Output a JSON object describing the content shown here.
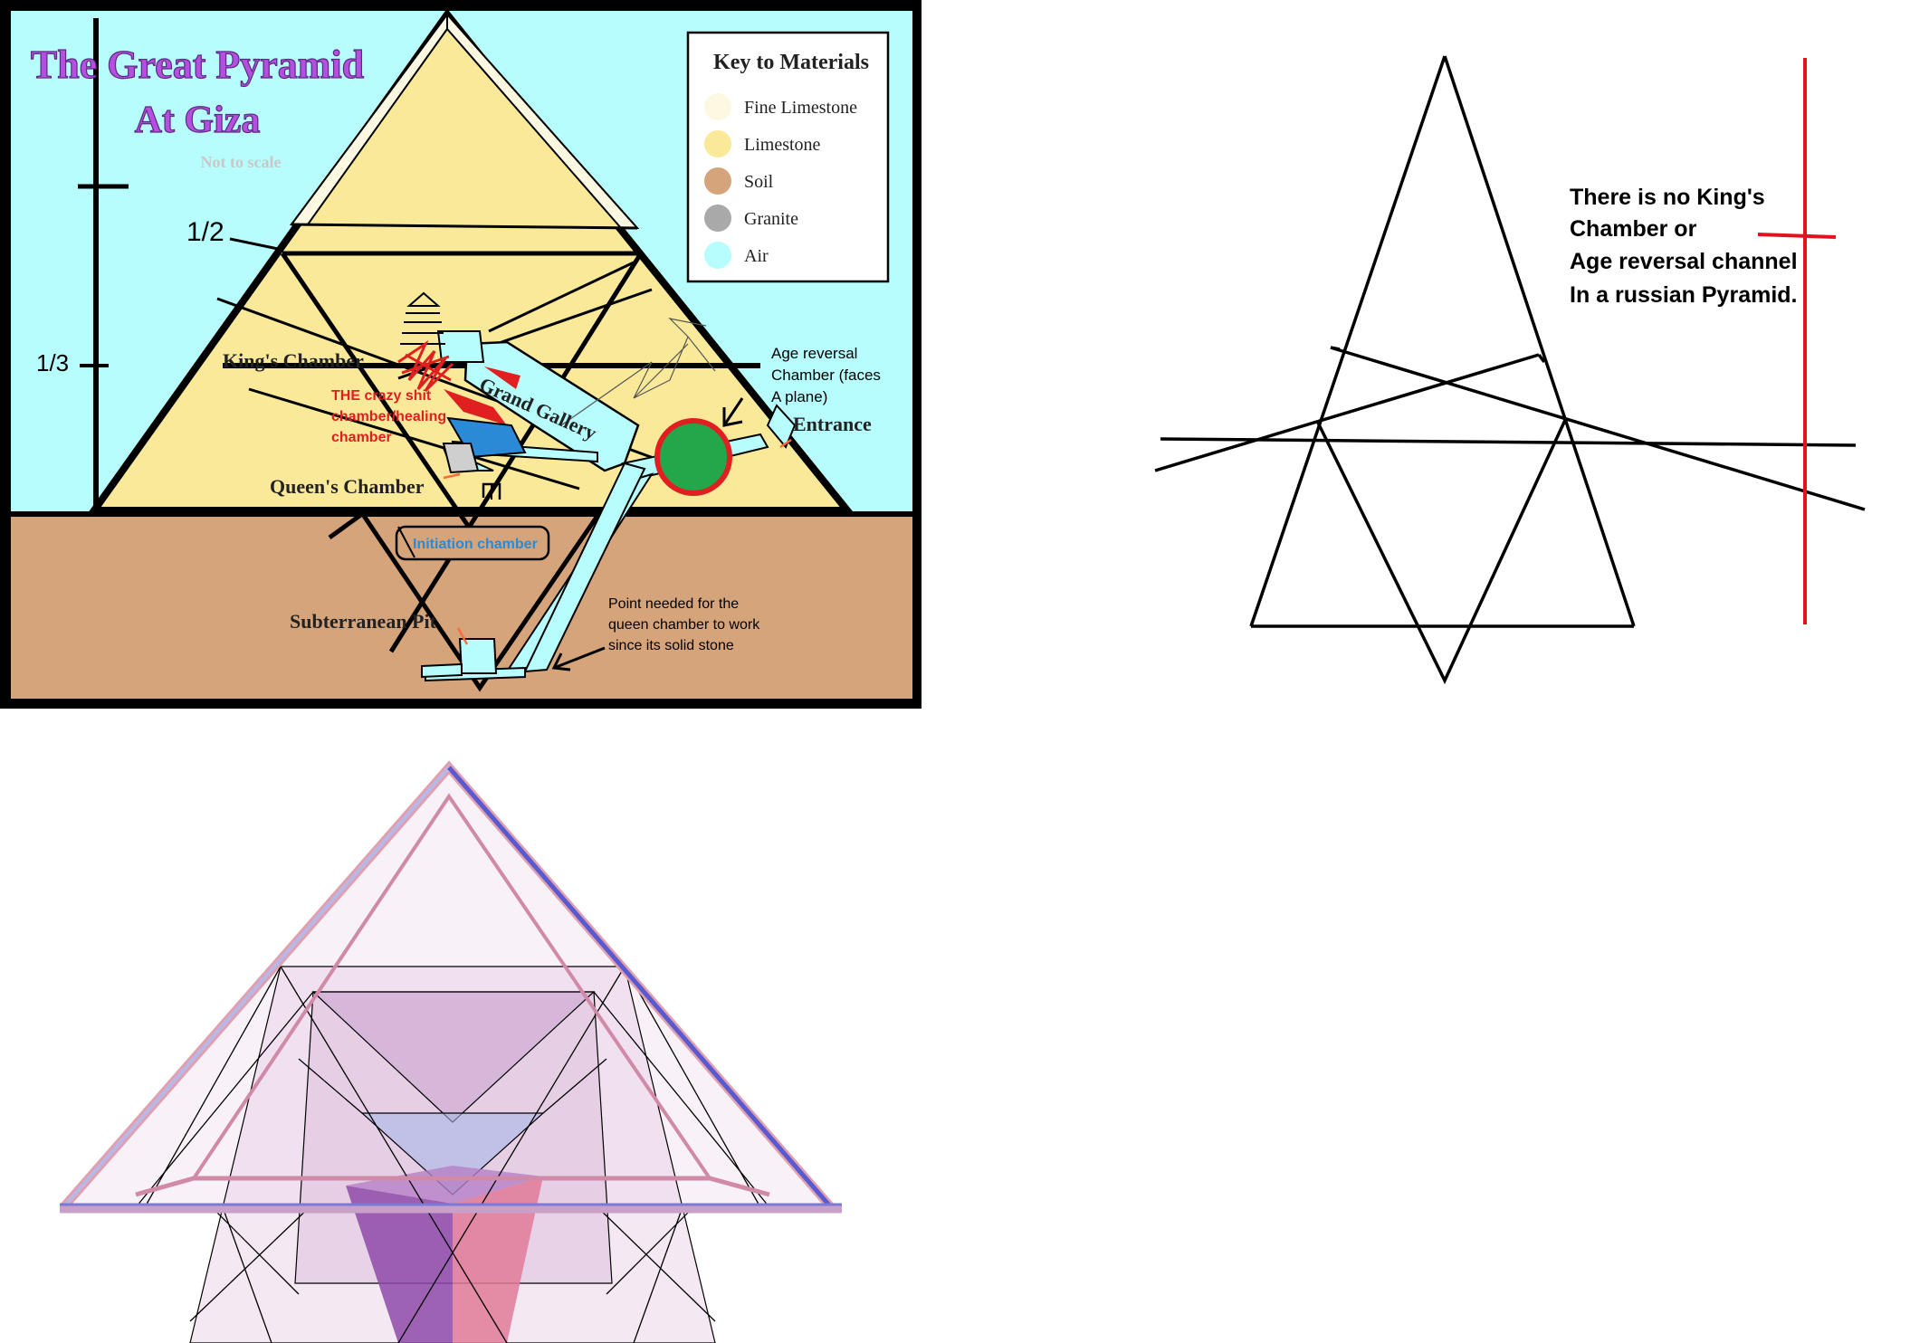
{
  "giza": {
    "title_line1": "The Great Pyramid",
    "title_line2": "At Giza",
    "subtitle": "Not to scale",
    "legend": {
      "title": "Key to Materials",
      "items": [
        {
          "label": "Fine Limestone",
          "color": "#fdf8e2"
        },
        {
          "label": "Limestone",
          "color": "#fbe99a"
        },
        {
          "label": "Soil",
          "color": "#d6a47a"
        },
        {
          "label": "Granite",
          "color": "#a9a9a9"
        },
        {
          "label": "Air",
          "color": "#b8fdfd"
        }
      ]
    },
    "labels": {
      "half": "1/2",
      "third": "1/3",
      "kings_chamber": "King's Chamber",
      "grand_gallery": "Grand Gallery",
      "crazy_line1": "THE crazy shit",
      "crazy_line2": "chamber/healing",
      "crazy_line3": "chamber",
      "queens_chamber": "Queen's Chamber",
      "initiation": "Initiation chamber",
      "subterranean": "Subterranean Pit",
      "age_line1": "Age reversal",
      "age_line2": "Chamber (faces",
      "age_line3": "A plane)",
      "entrance": "Entrance",
      "point_line1": "Point needed for the",
      "point_line2": "queen chamber to work",
      "point_line3": "since its solid stone"
    },
    "colors": {
      "sky": "#b8fdfd",
      "limestone": "#fbe99a",
      "fine_limestone": "#fdf8e2",
      "soil": "#d6a47a",
      "title": "#b44fe0",
      "annotation_red": "#e02020",
      "annotation_blue": "#2a8ad6",
      "green": "#22a84a"
    }
  },
  "russian": {
    "note_line1": "There is no King's",
    "note_line2": "Chamber or",
    "note_line3": "Age reversal channel",
    "note_line4": "In a russian Pyramid.",
    "accent": "#e0141e"
  },
  "star": {
    "colors": {
      "purple": "#8e4aa8",
      "pink": "#e07a98",
      "light": "#ecd6ea"
    }
  }
}
